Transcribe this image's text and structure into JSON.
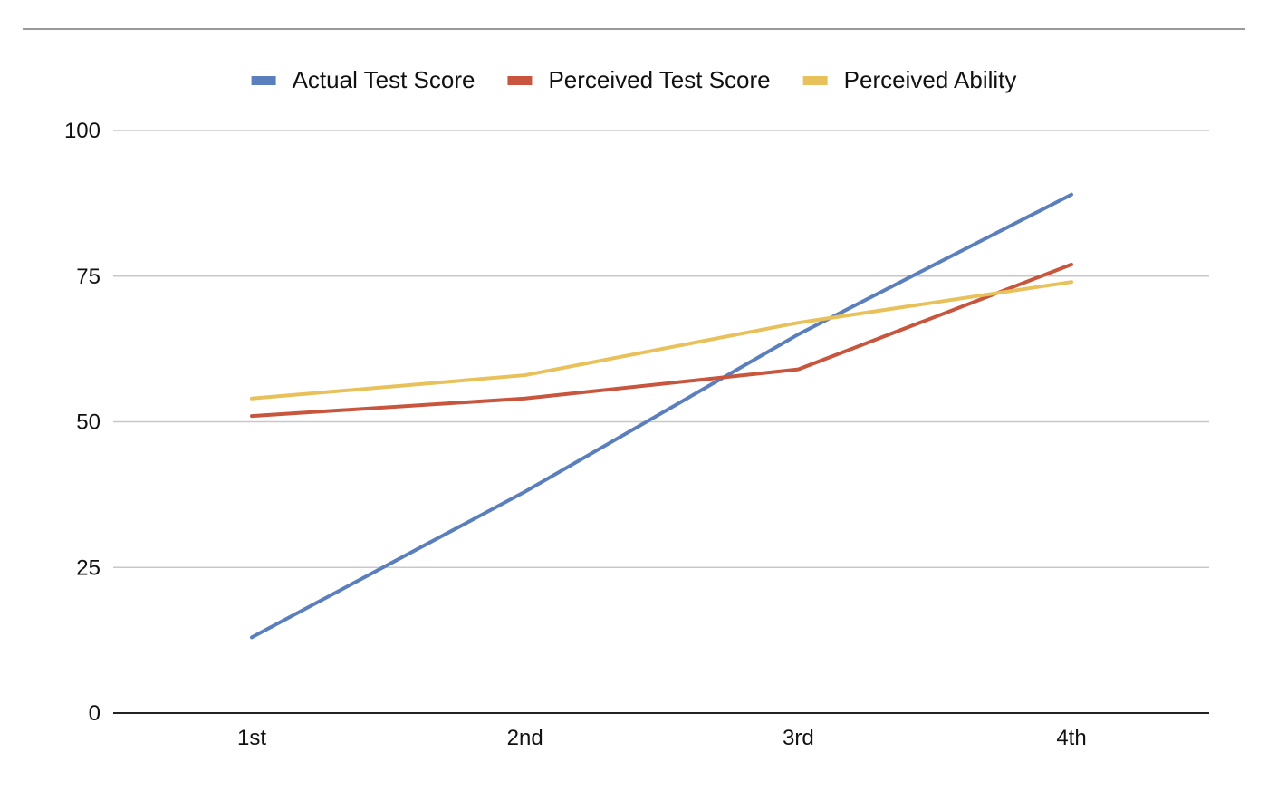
{
  "chart_data": {
    "type": "line",
    "title": "",
    "xlabel": "",
    "ylabel": "",
    "categories": [
      "1st",
      "2nd",
      "3rd",
      "4th"
    ],
    "ylim": [
      0,
      100
    ],
    "yticks": [
      "0",
      "25",
      "50",
      "75",
      "100"
    ],
    "grid": true,
    "legend_position": "top",
    "series": [
      {
        "name": "Actual Test Score",
        "color": "#5b7fbd",
        "values": [
          13,
          38,
          65,
          89
        ]
      },
      {
        "name": "Perceived Test Score",
        "color": "#c8553d",
        "values": [
          51,
          54,
          59,
          77
        ]
      },
      {
        "name": "Perceived Ability",
        "color": "#e8c15a",
        "values": [
          54,
          58,
          67,
          74
        ]
      }
    ]
  }
}
